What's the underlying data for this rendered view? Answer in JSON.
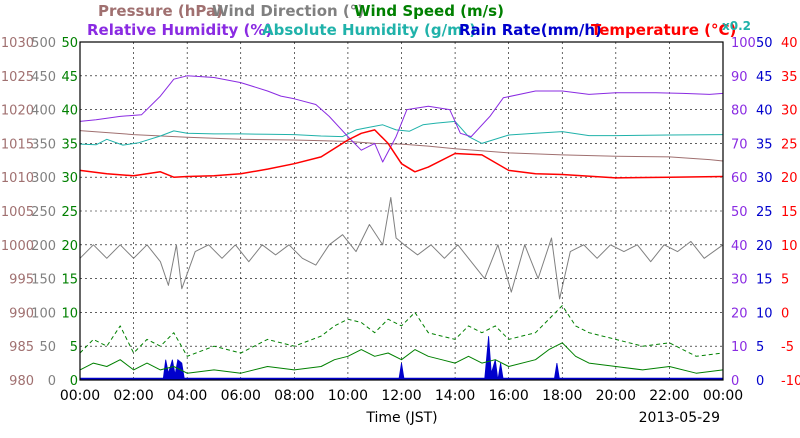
{
  "chart_data": {
    "type": "line",
    "date": "2013-05-29",
    "xlabel": "Time (JST)",
    "x_ticks": [
      "00:00",
      "02:00",
      "04:00",
      "06:00",
      "08:00",
      "10:00",
      "12:00",
      "14:00",
      "16:00",
      "18:00",
      "20:00",
      "22:00",
      "00:00"
    ],
    "x_range_hours": [
      0,
      24
    ],
    "grid": true,
    "legend_row1": [
      {
        "label": "Pressure (hPa)",
        "color": "#a07070"
      },
      {
        "label": "Wind Direction (°)",
        "color": "#808080"
      },
      {
        "label": "Wind Speed (m/s)",
        "color": "#008000"
      }
    ],
    "legend_row2": [
      {
        "label": "Relative Humidity (%)",
        "color": "#8a2be2"
      },
      {
        "label": "Absolute Humidity (g/m³)",
        "color": "#20b2aa"
      },
      {
        "label": "Rain Rate(mm/h)",
        "color": "#0000cc"
      },
      {
        "label": "Temperature (°C)",
        "color": "#ff0000"
      },
      {
        "label": "x0.2",
        "color": "#20b2aa"
      }
    ],
    "axes": [
      {
        "name": "Pressure",
        "unit": "hPa",
        "color": "#a07070",
        "range": [
          980,
          1030
        ],
        "ticks": [
          "1030",
          "1025",
          "1020",
          "1015",
          "1010",
          "1005",
          "1000",
          "995",
          "990",
          "985",
          "980"
        ]
      },
      {
        "name": "Wind Direction",
        "unit": "deg",
        "color": "#808080",
        "range": [
          0,
          500
        ],
        "ticks": [
          "500",
          "450",
          "400",
          "350",
          "300",
          "250",
          "200",
          "150",
          "100",
          "50",
          "0"
        ]
      },
      {
        "name": "Wind Speed",
        "unit": "m/s",
        "color": "#008000",
        "range": [
          0,
          50
        ],
        "ticks": [
          "50",
          "45",
          "40",
          "35",
          "30",
          "25",
          "20",
          "15",
          "10",
          "5",
          "0"
        ]
      },
      {
        "name": "Relative Humidity",
        "unit": "%",
        "color": "#8a2be2",
        "range": [
          0,
          100
        ],
        "ticks": [
          "100",
          "90",
          "80",
          "70",
          "60",
          "50",
          "40",
          "30",
          "20",
          "10",
          "0"
        ]
      },
      {
        "name": "Rain Rate",
        "unit": "mm/h",
        "color": "#0000cc",
        "range": [
          0,
          50
        ],
        "ticks": [
          "50",
          "45",
          "40",
          "35",
          "30",
          "25",
          "20",
          "15",
          "10",
          "5",
          "0"
        ]
      },
      {
        "name": "Temperature",
        "unit": "C",
        "color": "#ff0000",
        "range": [
          -10,
          40
        ],
        "ticks": [
          "40",
          "35",
          "30",
          "25",
          "20",
          "15",
          "10",
          "5",
          "0",
          "-5",
          "-10"
        ]
      }
    ],
    "series": [
      {
        "name": "Pressure",
        "unit": "hPa",
        "color": "#a07070",
        "width": 1,
        "x": [
          0,
          2,
          4,
          6,
          8,
          10,
          11,
          12,
          13,
          14,
          16,
          18,
          20,
          22,
          23.5,
          24
        ],
        "y": [
          1016.9,
          1016.3,
          1015.9,
          1015.6,
          1015.5,
          1015.3,
          1015.0,
          1014.9,
          1014.6,
          1014.2,
          1013.6,
          1013.3,
          1013.1,
          1013.0,
          1012.6,
          1012.4
        ]
      },
      {
        "name": "Temperature",
        "unit": "C",
        "color": "#ff0000",
        "width": 1.5,
        "x": [
          0,
          1,
          2,
          3,
          3.5,
          4,
          5,
          6,
          7,
          8,
          9,
          10,
          10.5,
          11,
          11.5,
          12,
          12.5,
          13,
          14,
          15,
          16,
          17,
          18,
          20,
          22,
          24
        ],
        "y": [
          21.0,
          20.5,
          20.2,
          20.8,
          20.0,
          20.1,
          20.2,
          20.5,
          21.2,
          22.0,
          23.0,
          25.5,
          26.5,
          27.0,
          25.0,
          22.0,
          20.8,
          21.5,
          23.5,
          23.3,
          21.0,
          20.5,
          20.4,
          19.9,
          20.0,
          20.1
        ]
      },
      {
        "name": "Relative Humidity",
        "unit": "%",
        "color": "#8a2be2",
        "width": 1,
        "x": [
          0,
          0.6,
          1.5,
          2.3,
          3.0,
          3.5,
          4.0,
          5.0,
          6.0,
          7.0,
          7.5,
          8.0,
          8.8,
          9.3,
          10.0,
          10.5,
          11.0,
          11.3,
          11.8,
          12.2,
          13.0,
          13.8,
          14.2,
          14.6,
          15.3,
          15.8,
          17.0,
          18.0,
          19.0,
          20.0,
          20.5,
          21.5,
          22.5,
          23.5,
          24
        ],
        "y": [
          76.5,
          77,
          78,
          78.5,
          84,
          89,
          90,
          89.5,
          88,
          85.5,
          84,
          83.2,
          81.5,
          78,
          72,
          68,
          70,
          64.5,
          72,
          80,
          81,
          80,
          73,
          72,
          78,
          83.5,
          85.5,
          85.5,
          84.5,
          85,
          85,
          85,
          84.8,
          84.5,
          84.8
        ]
      },
      {
        "name": "Absolute Humidity (x0.2)",
        "unit": "g/m3",
        "color": "#20b2aa",
        "width": 1,
        "x": [
          0,
          0.6,
          1.0,
          1.6,
          2.2,
          3.0,
          3.5,
          4.0,
          5,
          6,
          7,
          8,
          9,
          9.8,
          10.3,
          10.8,
          11.3,
          11.8,
          12.3,
          12.8,
          13.3,
          14.0,
          14.5,
          15,
          16,
          17,
          18,
          19,
          20,
          22,
          24
        ],
        "y": [
          69.8,
          69.6,
          71.2,
          69.5,
          70.2,
          72.2,
          73.7,
          73.0,
          72.8,
          72.8,
          72.7,
          72.6,
          72.2,
          72.0,
          74.0,
          74.8,
          75.5,
          74.0,
          73.6,
          75.5,
          76.0,
          76.5,
          72.0,
          70.0,
          72.5,
          73.0,
          73.5,
          72.3,
          72.3,
          72.5,
          72.6
        ]
      },
      {
        "name": "Wind Direction",
        "unit": "deg",
        "color": "#808080",
        "width": 1,
        "x": [
          0,
          0.5,
          1,
          1.5,
          2,
          2.5,
          3,
          3.3,
          3.6,
          3.8,
          4.3,
          4.8,
          5.3,
          5.8,
          6.3,
          6.8,
          7.3,
          7.8,
          8.3,
          8.8,
          9.3,
          9.8,
          10.3,
          10.8,
          11.3,
          11.6,
          11.8,
          12.1,
          12.6,
          13.1,
          13.6,
          14.1,
          14.6,
          15.1,
          15.6,
          16.1,
          16.6,
          17.1,
          17.6,
          17.9,
          18.3,
          18.8,
          19.3,
          19.8,
          20.3,
          20.8,
          21.3,
          21.8,
          22.3,
          22.8,
          23.3,
          24
        ],
        "y": [
          180,
          200,
          180,
          200,
          180,
          200,
          175,
          140,
          200,
          135,
          190,
          200,
          180,
          200,
          175,
          200,
          185,
          200,
          180,
          170,
          200,
          215,
          190,
          230,
          200,
          270,
          210,
          200,
          185,
          200,
          180,
          200,
          175,
          150,
          200,
          130,
          200,
          150,
          210,
          120,
          190,
          200,
          180,
          200,
          190,
          200,
          175,
          200,
          190,
          205,
          180,
          200
        ]
      },
      {
        "name": "Wind Speed",
        "unit": "m/s",
        "color": "#008000",
        "width": 1,
        "x": [
          0,
          0.5,
          1,
          1.5,
          2,
          2.5,
          3,
          3.5,
          4,
          5,
          6,
          7,
          8,
          9,
          9.5,
          10,
          10.5,
          11,
          11.5,
          12,
          12.5,
          13,
          13.5,
          14,
          14.5,
          15,
          15.5,
          16,
          17,
          17.5,
          18,
          18.5,
          19,
          20,
          21,
          22,
          23,
          24
        ],
        "y": [
          1.5,
          2.5,
          2.0,
          3.0,
          1.5,
          2.5,
          1.5,
          2.0,
          1.0,
          1.5,
          1.0,
          2.0,
          1.5,
          2.0,
          3.0,
          3.5,
          4.5,
          3.5,
          4.0,
          3.0,
          4.5,
          3.5,
          3.0,
          2.5,
          3.5,
          2.5,
          3.0,
          2.0,
          3.0,
          4.5,
          5.5,
          3.5,
          2.5,
          2.0,
          1.5,
          2.0,
          1.0,
          1.5
        ]
      },
      {
        "name": "Wind Speed (gust)",
        "unit": "m/s",
        "color": "#008000",
        "width": 1,
        "dash": "4 3",
        "x": [
          0,
          0.5,
          1,
          1.5,
          2,
          2.5,
          3,
          3.5,
          4,
          5,
          6,
          7,
          8,
          9,
          9.5,
          10,
          10.5,
          11,
          11.5,
          12,
          12.5,
          13,
          13.5,
          14,
          14.5,
          15,
          15.5,
          16,
          17,
          17.5,
          18,
          18.5,
          19,
          20,
          21,
          22,
          23,
          24
        ],
        "y": [
          4.0,
          6.0,
          5.0,
          8.0,
          4.0,
          6.0,
          5.0,
          7.0,
          3.5,
          5.0,
          4.0,
          6.0,
          5.0,
          6.5,
          8.0,
          9.0,
          8.5,
          7.0,
          9.0,
          8.0,
          10.0,
          7.0,
          6.5,
          6.0,
          8.0,
          7.0,
          8.0,
          6.0,
          7.0,
          9.0,
          11.0,
          8.0,
          7.0,
          6.0,
          5.0,
          5.5,
          3.5,
          4.0
        ]
      },
      {
        "name": "Rain Rate",
        "unit": "mm/h",
        "color": "#0000cc",
        "fill": true,
        "x": [
          0,
          3.1,
          3.2,
          3.3,
          3.45,
          3.55,
          3.65,
          3.8,
          3.9,
          11.9,
          12.0,
          12.1,
          15.1,
          15.25,
          15.35,
          15.5,
          15.6,
          15.7,
          15.8,
          17.7,
          17.8,
          17.9,
          24
        ],
        "y": [
          0,
          0,
          3.0,
          1.0,
          3.0,
          0.8,
          3.0,
          2.5,
          0,
          0,
          2.5,
          0,
          0,
          6.5,
          1.0,
          3.0,
          0,
          2.5,
          0,
          0,
          2.5,
          0,
          0
        ]
      }
    ]
  }
}
